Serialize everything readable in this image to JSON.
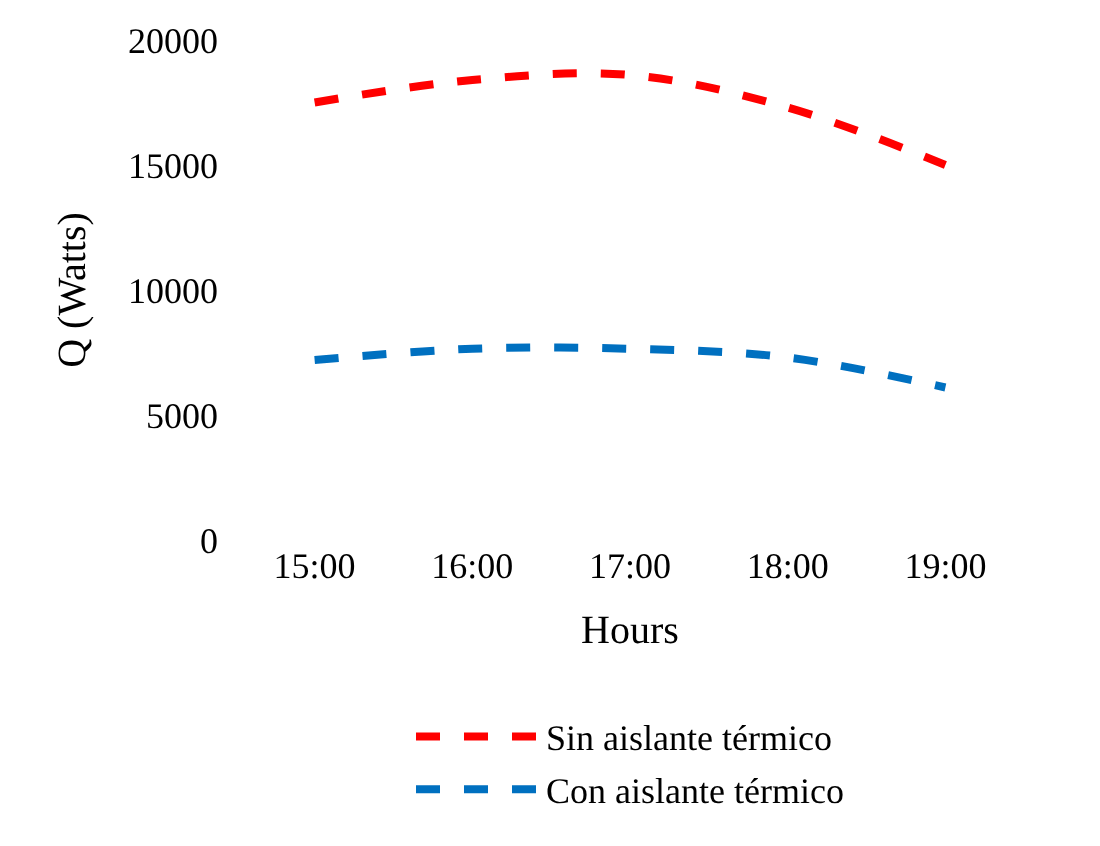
{
  "chart_data": {
    "type": "line",
    "xlabel": "Hours",
    "ylabel": "Q (Watts)",
    "categories": [
      "15:00",
      "16:00",
      "17:00",
      "18:00",
      "19:00"
    ],
    "series": [
      {
        "name": "Sin aislante térmico",
        "color": "#ff0000",
        "values": [
          17500,
          18400,
          18600,
          17300,
          15000
        ]
      },
      {
        "name": "Con aislante térmico",
        "color": "#0070c0",
        "values": [
          7200,
          7650,
          7650,
          7300,
          6100
        ]
      }
    ],
    "ylim": [
      0,
      20000
    ],
    "yticks": [
      0,
      5000,
      10000,
      15000,
      20000
    ],
    "legend": "bottom",
    "marker": "none",
    "line_style": "dashed"
  }
}
